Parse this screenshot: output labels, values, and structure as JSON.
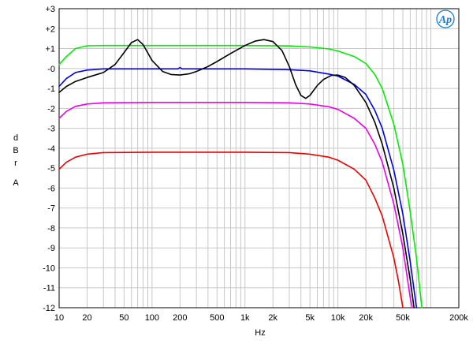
{
  "chart_data": {
    "type": "line",
    "title": "",
    "xlabel": "Hz",
    "ylabel_letters": [
      "d",
      "B",
      "r",
      "",
      "A"
    ],
    "x_scale": "log",
    "xlim": [
      10,
      200000
    ],
    "ylim": [
      -12,
      3
    ],
    "grid": true,
    "legend": "none",
    "x_ticks": [
      {
        "value": 10,
        "label": "10"
      },
      {
        "value": 20,
        "label": "20"
      },
      {
        "value": 50,
        "label": "50"
      },
      {
        "value": 100,
        "label": "100"
      },
      {
        "value": 200,
        "label": "200"
      },
      {
        "value": 500,
        "label": "500"
      },
      {
        "value": 1000,
        "label": "1k"
      },
      {
        "value": 2000,
        "label": "2k"
      },
      {
        "value": 5000,
        "label": "5k"
      },
      {
        "value": 10000,
        "label": "10k"
      },
      {
        "value": 20000,
        "label": "20k"
      },
      {
        "value": 50000,
        "label": "50k"
      },
      {
        "value": 200000,
        "label": "200k"
      }
    ],
    "y_ticks": [
      {
        "value": 3,
        "label": "+3"
      },
      {
        "value": 2,
        "label": "+2"
      },
      {
        "value": 1,
        "label": "+1"
      },
      {
        "value": 0,
        "label": "-0"
      },
      {
        "value": -1,
        "label": "-1"
      },
      {
        "value": -2,
        "label": "-2"
      },
      {
        "value": -3,
        "label": "-3"
      },
      {
        "value": -4,
        "label": "-4"
      },
      {
        "value": -5,
        "label": "-5"
      },
      {
        "value": -6,
        "label": "-6"
      },
      {
        "value": -7,
        "label": "-7"
      },
      {
        "value": -8,
        "label": "-8"
      },
      {
        "value": -9,
        "label": "-9"
      },
      {
        "value": -10,
        "label": "-10"
      },
      {
        "value": -11,
        "label": "-11"
      },
      {
        "value": -12,
        "label": "-12"
      }
    ],
    "series": [
      {
        "color": "#00ee00",
        "points": [
          [
            10,
            0.2
          ],
          [
            12,
            0.6
          ],
          [
            15,
            1.0
          ],
          [
            20,
            1.14
          ],
          [
            30,
            1.15
          ],
          [
            100,
            1.15
          ],
          [
            1000,
            1.15
          ],
          [
            3000,
            1.13
          ],
          [
            5000,
            1.08
          ],
          [
            8000,
            0.98
          ],
          [
            10000,
            0.88
          ],
          [
            15000,
            0.6
          ],
          [
            20000,
            0.25
          ],
          [
            25000,
            -0.3
          ],
          [
            30000,
            -1.0
          ],
          [
            40000,
            -2.8
          ],
          [
            50000,
            -4.8
          ],
          [
            60000,
            -7.2
          ],
          [
            70000,
            -9.5
          ],
          [
            80000,
            -12.0
          ]
        ]
      },
      {
        "color": "#0000ee",
        "points": [
          [
            10,
            -0.9
          ],
          [
            12,
            -0.5
          ],
          [
            15,
            -0.2
          ],
          [
            20,
            -0.08
          ],
          [
            30,
            -0.02
          ],
          [
            100,
            -0.02
          ],
          [
            190,
            -0.02
          ],
          [
            200,
            0.05
          ],
          [
            210,
            -0.02
          ],
          [
            1000,
            -0.02
          ],
          [
            3000,
            -0.06
          ],
          [
            5000,
            -0.12
          ],
          [
            8000,
            -0.28
          ],
          [
            10000,
            -0.38
          ],
          [
            15000,
            -0.8
          ],
          [
            20000,
            -1.3
          ],
          [
            25000,
            -2.1
          ],
          [
            30000,
            -3.0
          ],
          [
            40000,
            -5.1
          ],
          [
            50000,
            -7.3
          ],
          [
            60000,
            -9.7
          ],
          [
            70000,
            -12.0
          ]
        ]
      },
      {
        "color": "#000000",
        "points": [
          [
            10,
            -1.2
          ],
          [
            12,
            -0.9
          ],
          [
            15,
            -0.65
          ],
          [
            20,
            -0.45
          ],
          [
            30,
            -0.2
          ],
          [
            40,
            0.2
          ],
          [
            50,
            0.8
          ],
          [
            60,
            1.3
          ],
          [
            70,
            1.45
          ],
          [
            80,
            1.2
          ],
          [
            100,
            0.4
          ],
          [
            130,
            -0.15
          ],
          [
            160,
            -0.3
          ],
          [
            200,
            -0.33
          ],
          [
            250,
            -0.27
          ],
          [
            300,
            -0.15
          ],
          [
            400,
            0.1
          ],
          [
            500,
            0.35
          ],
          [
            700,
            0.75
          ],
          [
            1000,
            1.15
          ],
          [
            1300,
            1.38
          ],
          [
            1600,
            1.45
          ],
          [
            2000,
            1.35
          ],
          [
            2500,
            0.9
          ],
          [
            3000,
            0.1
          ],
          [
            3500,
            -0.8
          ],
          [
            4000,
            -1.35
          ],
          [
            4500,
            -1.5
          ],
          [
            5000,
            -1.35
          ],
          [
            6000,
            -0.85
          ],
          [
            7000,
            -0.55
          ],
          [
            8500,
            -0.35
          ],
          [
            10000,
            -0.33
          ],
          [
            12000,
            -0.45
          ],
          [
            15000,
            -0.85
          ],
          [
            20000,
            -1.7
          ],
          [
            25000,
            -2.7
          ],
          [
            30000,
            -3.8
          ],
          [
            40000,
            -6.0
          ],
          [
            50000,
            -8.3
          ],
          [
            60000,
            -10.6
          ],
          [
            66000,
            -12.0
          ]
        ]
      },
      {
        "color": "#ee00ee",
        "points": [
          [
            10,
            -2.5
          ],
          [
            12,
            -2.15
          ],
          [
            15,
            -1.9
          ],
          [
            20,
            -1.78
          ],
          [
            30,
            -1.72
          ],
          [
            100,
            -1.7
          ],
          [
            1000,
            -1.7
          ],
          [
            3000,
            -1.72
          ],
          [
            5000,
            -1.78
          ],
          [
            8000,
            -1.92
          ],
          [
            10000,
            -2.05
          ],
          [
            15000,
            -2.5
          ],
          [
            20000,
            -3.0
          ],
          [
            25000,
            -3.8
          ],
          [
            30000,
            -4.7
          ],
          [
            40000,
            -6.8
          ],
          [
            50000,
            -9.0
          ],
          [
            60000,
            -11.5
          ],
          [
            63000,
            -12.0
          ]
        ]
      },
      {
        "color": "#ee0000",
        "points": [
          [
            10,
            -5.05
          ],
          [
            12,
            -4.7
          ],
          [
            15,
            -4.45
          ],
          [
            20,
            -4.3
          ],
          [
            30,
            -4.22
          ],
          [
            100,
            -4.2
          ],
          [
            1000,
            -4.2
          ],
          [
            3000,
            -4.22
          ],
          [
            5000,
            -4.3
          ],
          [
            8000,
            -4.45
          ],
          [
            10000,
            -4.6
          ],
          [
            15000,
            -5.05
          ],
          [
            20000,
            -5.6
          ],
          [
            25000,
            -6.5
          ],
          [
            30000,
            -7.4
          ],
          [
            40000,
            -9.5
          ],
          [
            45000,
            -10.7
          ],
          [
            50000,
            -12.0
          ]
        ]
      }
    ]
  },
  "logo": {
    "text": "Ap",
    "color": "#1a7fd4"
  }
}
